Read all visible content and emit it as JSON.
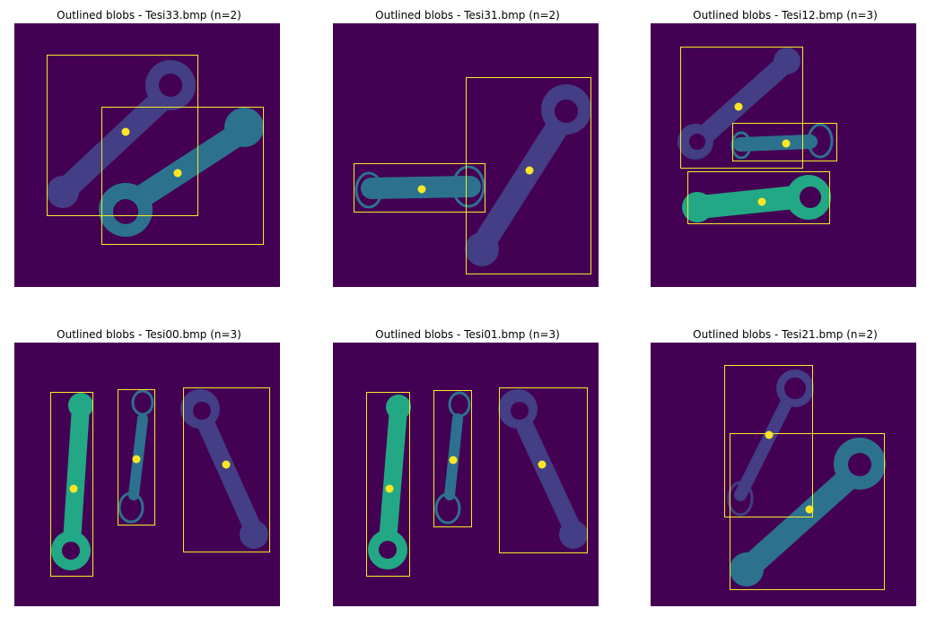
{
  "figure": {
    "colors": {
      "background": "#440154",
      "label_1": "#433e85",
      "label_2": "#2c728e",
      "label_3": "#22a884",
      "outline": "#fde725",
      "box": "#fde725",
      "centroid": "#fde725"
    },
    "panels": [
      {
        "title": "Outlined blobs - Tesi33.bmp (n=2)",
        "filename": "Tesi33.bmp",
        "blob_count": 2
      },
      {
        "title": "Outlined blobs - Tesi31.bmp (n=2)",
        "filename": "Tesi31.bmp",
        "blob_count": 2
      },
      {
        "title": "Outlined blobs - Tesi12.bmp (n=3)",
        "filename": "Tesi12.bmp",
        "blob_count": 3
      },
      {
        "title": "Outlined blobs - Tesi00.bmp (n=3)",
        "filename": "Tesi00.bmp",
        "blob_count": 3
      },
      {
        "title": "Outlined blobs - Tesi01.bmp (n=3)",
        "filename": "Tesi01.bmp",
        "blob_count": 3
      },
      {
        "title": "Outlined blobs - Tesi21.bmp (n=2)",
        "filename": "Tesi21.bmp",
        "blob_count": 2
      }
    ]
  }
}
